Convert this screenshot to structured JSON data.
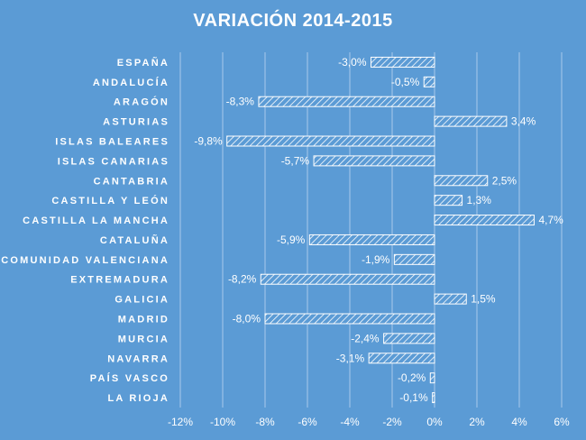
{
  "chart_data": {
    "type": "bar",
    "orientation": "horizontal",
    "title": "VARIACIÓN  2014-2015",
    "categories": [
      "ESPAÑA",
      "ANDALUCÍA",
      "ARAGÓN",
      "ASTURIAS",
      "ISLAS BALEARES",
      "ISLAS CANARIAS",
      "CANTABRIA",
      "CASTILLA Y LEÓN",
      "CASTILLA LA MANCHA",
      "CATALUÑA",
      "COMUNIDAD VALENCIANA",
      "EXTREMADURA",
      "GALICIA",
      "MADRID",
      "MURCIA",
      "NAVARRA",
      "PAÍS VASCO",
      "LA RIOJA"
    ],
    "values": [
      -3.0,
      -0.5,
      -8.3,
      3.4,
      -9.8,
      -5.7,
      2.5,
      1.3,
      4.7,
      -5.9,
      -1.9,
      -8.2,
      1.5,
      -8.0,
      -2.4,
      -3.1,
      -0.2,
      -0.1
    ],
    "value_labels": [
      "-3,0%",
      "-0,5%",
      "-8,3%",
      "3,4%",
      "-9,8%",
      "-5,7%",
      "2,5%",
      "1,3%",
      "4,7%",
      "-5,9%",
      "-1,9%",
      "-8,2%",
      "1,5%",
      "-8,0%",
      "-2,4%",
      "-3,1%",
      "-0,2%",
      "-0,1%"
    ],
    "x_ticks": [
      -12,
      -10,
      -8,
      -6,
      -4,
      -2,
      0,
      2,
      4,
      6
    ],
    "x_tick_labels": [
      "-12%",
      "-10%",
      "-8%",
      "-6%",
      "-4%",
      "-2%",
      "0%",
      "2%",
      "4%",
      "6%"
    ],
    "xlim": [
      -12,
      6
    ],
    "grid": true,
    "xlabel": "",
    "ylabel": "",
    "colors": {
      "background": "#5b9bd5",
      "bar_pattern": "white diagonal hatch",
      "text": "#ffffff"
    }
  }
}
